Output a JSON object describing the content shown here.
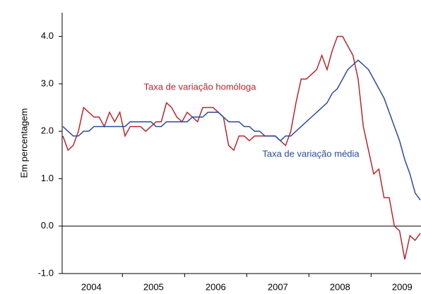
{
  "chart_data": {
    "type": "line",
    "y_label": "Em percentagem",
    "categories": [
      null,
      null,
      null,
      null,
      null,
      null,
      "2004",
      null,
      null,
      null,
      null,
      null,
      null,
      null,
      null,
      null,
      null,
      null,
      "2005",
      null,
      null,
      null,
      null,
      null,
      null,
      null,
      null,
      null,
      null,
      null,
      "2006",
      null,
      null,
      null,
      null,
      null,
      null,
      null,
      null,
      null,
      null,
      null,
      "2007",
      null,
      null,
      null,
      null,
      null,
      null,
      null,
      null,
      null,
      null,
      null,
      "2008",
      null,
      null,
      null,
      null,
      null,
      null,
      null,
      null,
      null,
      null,
      null,
      "2009",
      null,
      null,
      null
    ],
    "series": [
      {
        "name": "Taxa de variação homóloga",
        "color": "#b5282e",
        "values": [
          1.9,
          1.6,
          1.7,
          2.0,
          2.5,
          2.4,
          2.3,
          2.3,
          2.1,
          2.4,
          2.2,
          2.4,
          1.9,
          2.1,
          2.1,
          2.1,
          2.0,
          2.1,
          2.2,
          2.2,
          2.6,
          2.5,
          2.3,
          2.2,
          2.4,
          2.3,
          2.2,
          2.5,
          2.5,
          2.5,
          2.4,
          2.3,
          1.7,
          1.6,
          1.9,
          1.9,
          1.8,
          1.9,
          1.9,
          1.9,
          1.9,
          1.9,
          1.8,
          1.7,
          2.0,
          2.6,
          3.1,
          3.1,
          3.2,
          3.3,
          3.6,
          3.3,
          3.7,
          4.0,
          4.0,
          3.8,
          3.6,
          3.1,
          2.1,
          1.6,
          1.1,
          1.2,
          0.6,
          0.6,
          0.0,
          -0.1,
          -0.7,
          -0.2,
          -0.3,
          -0.15
        ]
      },
      {
        "name": "Taxa de variação média",
        "color": "#2a4a9c",
        "values": [
          2.1,
          2.0,
          1.9,
          1.9,
          2.0,
          2.0,
          2.1,
          2.1,
          2.1,
          2.1,
          2.1,
          2.1,
          2.1,
          2.2,
          2.2,
          2.2,
          2.2,
          2.2,
          2.1,
          2.1,
          2.2,
          2.2,
          2.2,
          2.2,
          2.2,
          2.3,
          2.3,
          2.3,
          2.4,
          2.4,
          2.4,
          2.3,
          2.2,
          2.2,
          2.2,
          2.1,
          2.1,
          2.0,
          2.0,
          1.9,
          1.9,
          1.9,
          1.8,
          1.9,
          1.9,
          2.0,
          2.1,
          2.2,
          2.3,
          2.4,
          2.5,
          2.6,
          2.8,
          2.9,
          3.1,
          3.3,
          3.4,
          3.5,
          3.4,
          3.3,
          3.1,
          2.9,
          2.7,
          2.4,
          2.1,
          1.8,
          1.4,
          1.1,
          0.7,
          0.55
        ]
      }
    ],
    "ylim": [
      -1,
      4.5
    ],
    "yticks": [
      {
        "value": -1,
        "label": "-1.0"
      },
      {
        "value": 0,
        "label": "0.0"
      },
      {
        "value": 1,
        "label": "1.0"
      },
      {
        "value": 2,
        "label": "2.0"
      },
      {
        "value": 3,
        "label": "3.0"
      },
      {
        "value": 4,
        "label": "4.0"
      }
    ],
    "zero_line": true
  }
}
